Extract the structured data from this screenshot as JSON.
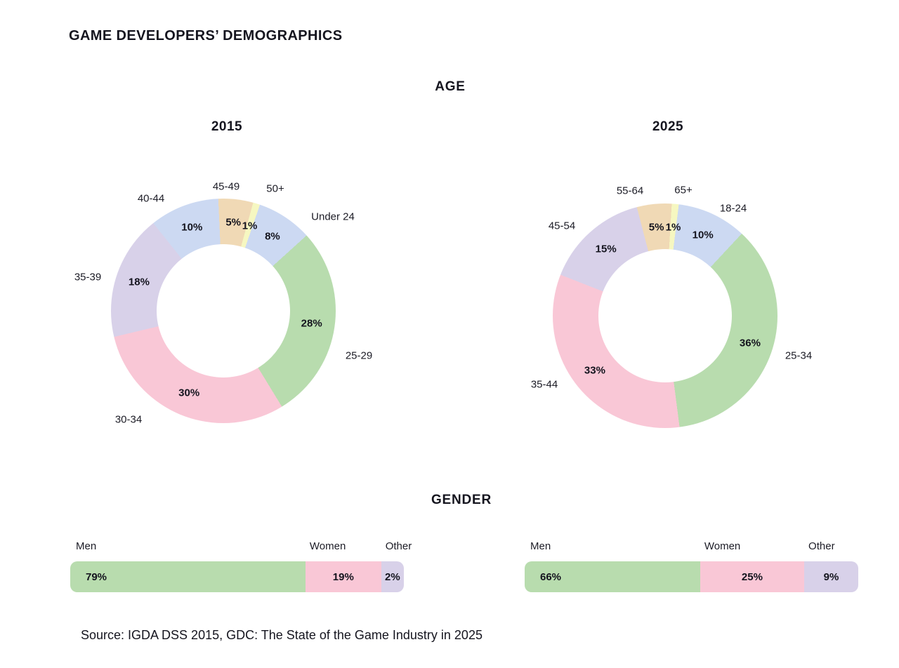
{
  "page_title": "GAME DEVELOPERS’ DEMOGRAPHICS",
  "sections": {
    "age": "AGE",
    "gender": "GENDER"
  },
  "source_note": "Source: IGDA DSS 2015, GDC: The State of the Game Industry in 2025",
  "palette": {
    "green": "#b8dcae",
    "pink": "#f9c7d6",
    "lavender": "#d8d1e9",
    "blue": "#ccd9f2",
    "tan": "#f0d9b5",
    "yellow": "#f6f7c1",
    "text": "#15151f",
    "background": "#ffffff"
  },
  "chart_data": [
    {
      "type": "pie",
      "subtype": "donut",
      "section": "AGE",
      "title": "2015",
      "start_angle": 19,
      "label_radius": 127,
      "legend_position": "around",
      "slices": [
        {
          "label": "Under 24",
          "value": 8,
          "color": "#ccd9f2"
        },
        {
          "label": "25-29",
          "value": 28,
          "color": "#b8dcae"
        },
        {
          "label": "30-34",
          "value": 30,
          "color": "#f9c7d6"
        },
        {
          "label": "35-39",
          "value": 18,
          "color": "#d8d1e9"
        },
        {
          "label": "40-44",
          "value": 10,
          "color": "#ccd9f2"
        },
        {
          "label": "45-49",
          "value": 5,
          "color": "#f0d9b5"
        },
        {
          "label": "50+",
          "value": 1,
          "color": "#f6f7c1"
        }
      ]
    },
    {
      "type": "pie",
      "subtype": "donut",
      "section": "AGE",
      "title": "2025",
      "start_angle": 7,
      "label_radius": 127,
      "legend_position": "around",
      "slices": [
        {
          "label": "18-24",
          "value": 10,
          "color": "#ccd9f2"
        },
        {
          "label": "25-34",
          "value": 36,
          "color": "#b8dcae"
        },
        {
          "label": "35-44",
          "value": 33,
          "color": "#f9c7d6"
        },
        {
          "label": "45-54",
          "value": 15,
          "color": "#d8d1e9"
        },
        {
          "label": "55-64",
          "value": 5,
          "color": "#f0d9b5"
        },
        {
          "label": "65+",
          "value": 1,
          "color": "#f6f7c1"
        }
      ]
    },
    {
      "type": "bar",
      "subtype": "stacked-horizontal",
      "section": "GENDER",
      "title": "2015",
      "display_widths": [
        70.5,
        22.7,
        6.8
      ],
      "segments": [
        {
          "label": "Men",
          "value": 79,
          "color": "#b8dcae"
        },
        {
          "label": "Women",
          "value": 19,
          "color": "#f9c7d6"
        },
        {
          "label": "Other",
          "value": 2,
          "color": "#d8d1e9"
        }
      ]
    },
    {
      "type": "bar",
      "subtype": "stacked-horizontal",
      "section": "GENDER",
      "title": "2025",
      "display_widths": [
        52.6,
        31.2,
        16.2
      ],
      "segments": [
        {
          "label": "Men",
          "value": 66,
          "color": "#b8dcae"
        },
        {
          "label": "Women",
          "value": 25,
          "color": "#f9c7d6"
        },
        {
          "label": "Other",
          "value": 9,
          "color": "#d8d1e9"
        }
      ]
    }
  ]
}
